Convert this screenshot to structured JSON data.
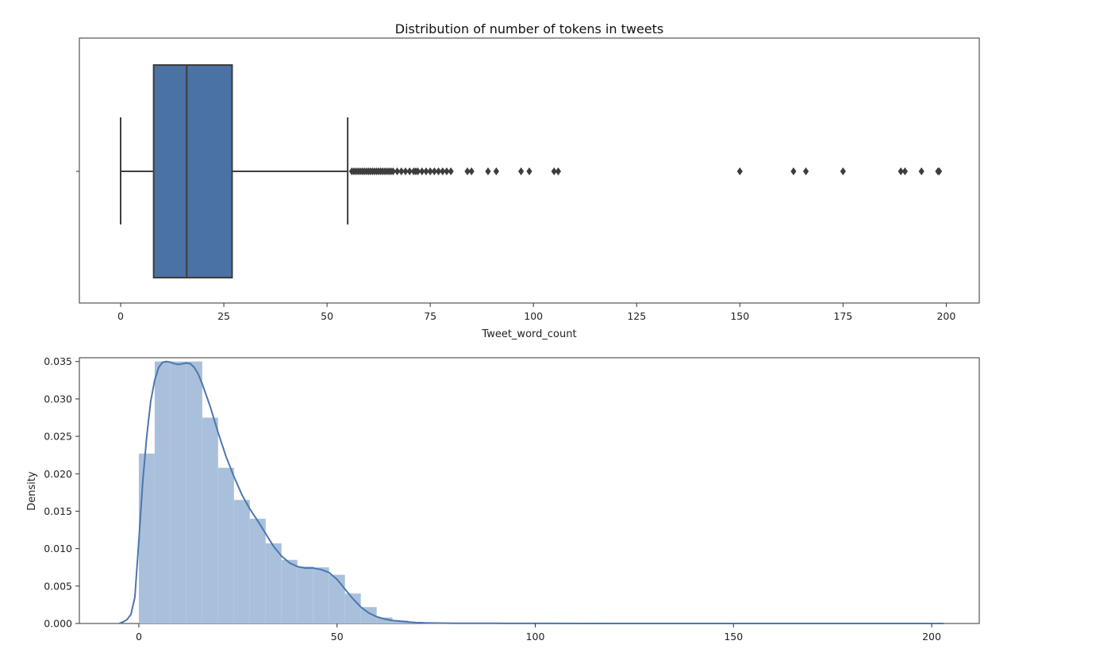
{
  "chart_data": [
    {
      "type": "box",
      "title": "Distribution of number of tokens in tweets",
      "xlabel": "Tweet_word_count",
      "ylabel": "",
      "xlim": [
        -10,
        208
      ],
      "xticks": [
        0,
        25,
        50,
        75,
        100,
        125,
        150,
        175,
        200
      ],
      "grid": false,
      "box": {
        "whisker_low": 0,
        "q1": 8,
        "median": 16,
        "q3": 27,
        "whisker_high": 55,
        "color": "#4a72a3",
        "line_color": "#3d3d3d"
      },
      "outliers": [
        56,
        56.5,
        57,
        57.5,
        58,
        58.5,
        59,
        59.5,
        60,
        60.5,
        61,
        61.5,
        62,
        62.5,
        63,
        63.5,
        64,
        64.5,
        65,
        65.5,
        66,
        67,
        68,
        69,
        70,
        71,
        71.5,
        72,
        73,
        74,
        75,
        76,
        77,
        78,
        79,
        80,
        84,
        85,
        89,
        91,
        97,
        99,
        105,
        106,
        150,
        163,
        166,
        175,
        189,
        190,
        194,
        198,
        198.3
      ]
    },
    {
      "type": "histogram",
      "title": "",
      "xlabel": "",
      "ylabel": "Density",
      "xlim": [
        -15,
        212
      ],
      "ylim": [
        0,
        0.0355
      ],
      "xticks": [
        0,
        50,
        100,
        150,
        200
      ],
      "yticks": [
        0.0,
        0.005,
        0.01,
        0.015,
        0.02,
        0.025,
        0.03,
        0.035
      ],
      "grid": false,
      "bar_color": "#a9c0dc",
      "kde_color": "#4c76ad",
      "bin_width": 4,
      "bins": [
        {
          "x0": 0,
          "x1": 4,
          "density": 0.0227
        },
        {
          "x0": 4,
          "x1": 8,
          "density": 0.035
        },
        {
          "x0": 8,
          "x1": 12,
          "density": 0.035
        },
        {
          "x0": 12,
          "x1": 16,
          "density": 0.035
        },
        {
          "x0": 16,
          "x1": 20,
          "density": 0.0275
        },
        {
          "x0": 20,
          "x1": 24,
          "density": 0.0208
        },
        {
          "x0": 24,
          "x1": 28,
          "density": 0.0165
        },
        {
          "x0": 28,
          "x1": 32,
          "density": 0.014
        },
        {
          "x0": 32,
          "x1": 36,
          "density": 0.0107
        },
        {
          "x0": 36,
          "x1": 40,
          "density": 0.0085
        },
        {
          "x0": 40,
          "x1": 44,
          "density": 0.0076
        },
        {
          "x0": 44,
          "x1": 48,
          "density": 0.0075
        },
        {
          "x0": 48,
          "x1": 52,
          "density": 0.0065
        },
        {
          "x0": 52,
          "x1": 56,
          "density": 0.004
        },
        {
          "x0": 56,
          "x1": 60,
          "density": 0.0022
        },
        {
          "x0": 60,
          "x1": 64,
          "density": 0.0008
        },
        {
          "x0": 64,
          "x1": 68,
          "density": 0.0004
        },
        {
          "x0": 68,
          "x1": 72,
          "density": 0.0002
        },
        {
          "x0": 72,
          "x1": 76,
          "density": 0.0001
        },
        {
          "x0": 76,
          "x1": 80,
          "density": 5e-05
        }
      ],
      "kde": {
        "x": [
          -5,
          -4,
          -3,
          -2,
          -1,
          0,
          1,
          2,
          3,
          4,
          5,
          6,
          7,
          8,
          9,
          10,
          11,
          12,
          13,
          14,
          15,
          16,
          18,
          20,
          22,
          24,
          26,
          28,
          30,
          32,
          34,
          36,
          38,
          40,
          42,
          44,
          46,
          48,
          50,
          52,
          54,
          56,
          58,
          60,
          62,
          64,
          66,
          68,
          70,
          72,
          75,
          80,
          90,
          100,
          120,
          150,
          180,
          203
        ],
        "y": [
          0.0,
          0.0002,
          0.0005,
          0.0012,
          0.0035,
          0.011,
          0.019,
          0.025,
          0.0297,
          0.0325,
          0.0342,
          0.0349,
          0.035,
          0.0349,
          0.0347,
          0.0346,
          0.0347,
          0.0348,
          0.0347,
          0.0342,
          0.0333,
          0.032,
          0.029,
          0.0255,
          0.0223,
          0.0196,
          0.0172,
          0.0153,
          0.0137,
          0.012,
          0.0103,
          0.009,
          0.0081,
          0.0076,
          0.0074,
          0.0074,
          0.0072,
          0.0068,
          0.0059,
          0.0046,
          0.0033,
          0.0022,
          0.0014,
          0.0009,
          0.0006,
          0.0004,
          0.0003,
          0.0002,
          0.00012,
          8e-05,
          5e-05,
          3e-05,
          2e-05,
          1e-05,
          5e-06,
          3e-06,
          2e-06,
          0.0
        ]
      }
    }
  ]
}
